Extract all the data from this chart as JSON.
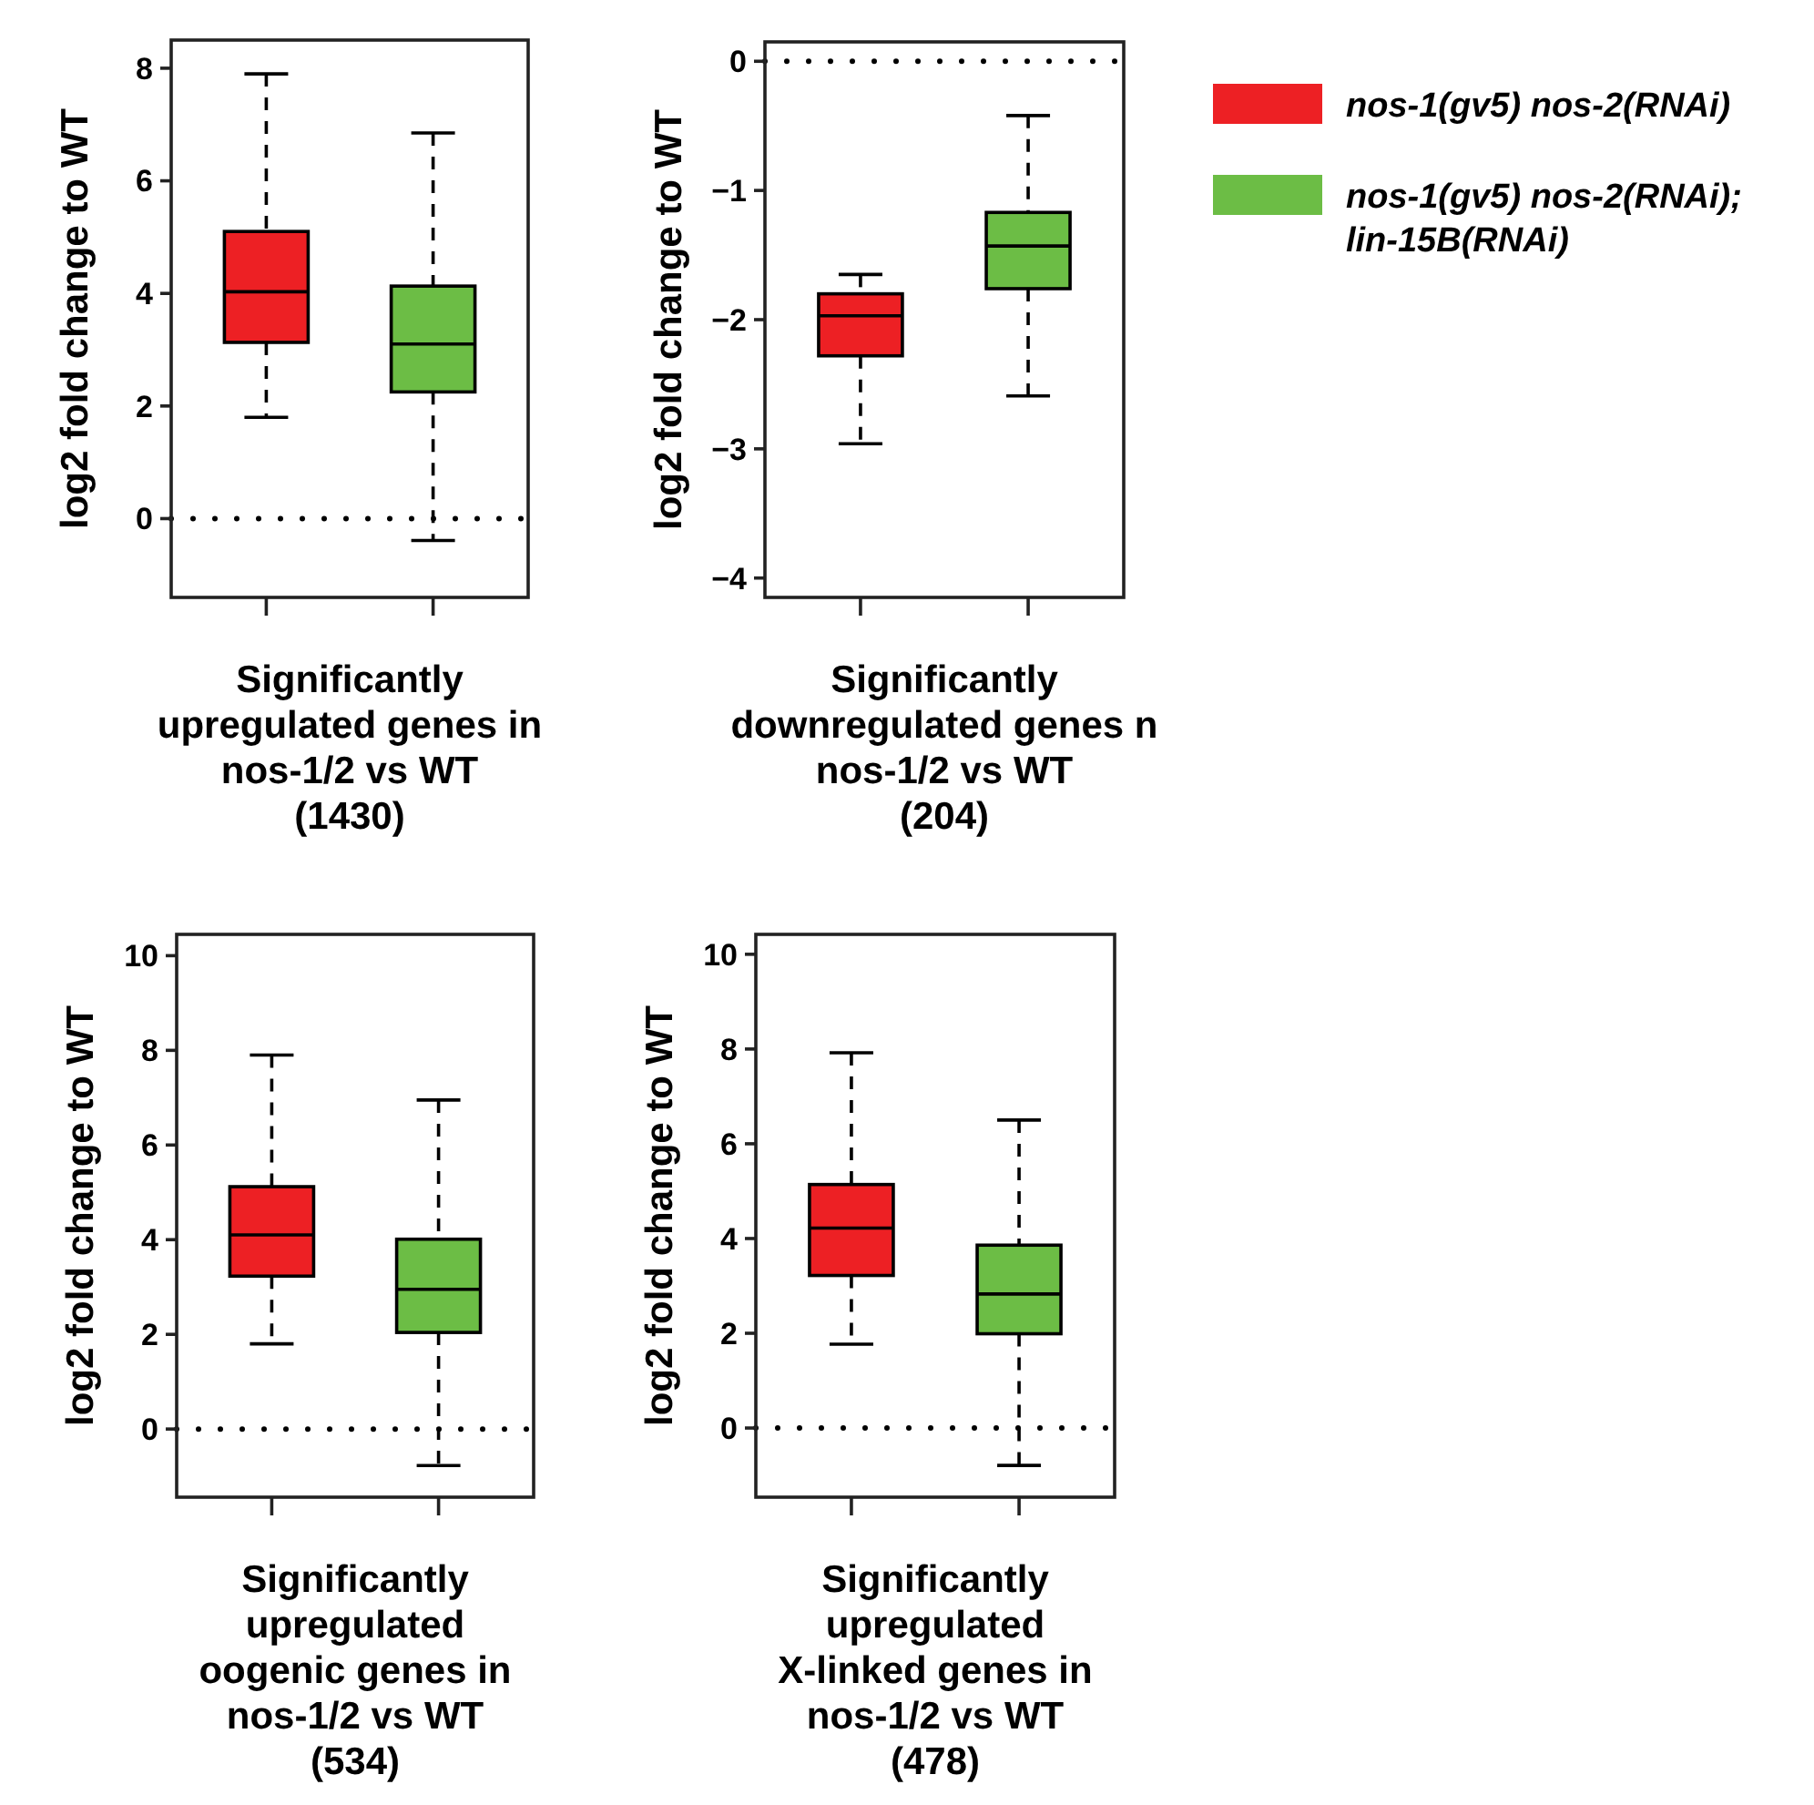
{
  "chart_data": [
    {
      "type": "box",
      "ylabel": "log2 fold change to WT",
      "xlabel": "Significantly\nupregulated genes in\nnos-1/2 vs WT\n(1430)",
      "categories": [
        null,
        null
      ],
      "ylim": [
        -1.4,
        8.5
      ],
      "yticks": [
        0,
        2,
        4,
        6,
        8
      ],
      "legend": false,
      "series": [
        {
          "color": "#ed2024",
          "boxes": [
            {
              "low": 1.8,
              "q1": 3.13,
              "median": 4.03,
              "q3": 5.1,
              "high": 7.9
            },
            null
          ]
        },
        {
          "color": "#6cbd45",
          "boxes": [
            null,
            {
              "low": -0.39,
              "q1": 2.25,
              "median": 3.1,
              "q3": 4.13,
              "high": 6.85
            }
          ]
        }
      ],
      "ref_lines": [
        {
          "axis": "y",
          "value": 0,
          "line_style": "dotted"
        }
      ]
    },
    {
      "type": "box",
      "ylabel": "log2 fold change to WT",
      "xlabel": "Significantly\ndownregulated genes n\nnos-1/2 vs WT\n(204)",
      "categories": [
        null,
        null
      ],
      "ylim": [
        -4.15,
        0.15
      ],
      "yticks": [
        {
          "value": 0,
          "label": "0"
        },
        {
          "value": -1,
          "label": "−1"
        },
        {
          "value": -2,
          "label": "−2"
        },
        {
          "value": -3,
          "label": "−3"
        },
        {
          "value": -4,
          "label": "−4"
        }
      ],
      "legend": "right",
      "series": [
        {
          "name": "nos-1(gv5) nos-2(RNAi)",
          "color": "#ed2024",
          "boxes": [
            {
              "low": -2.96,
              "q1": -2.28,
              "median": -1.97,
              "q3": -1.8,
              "high": -1.65
            },
            null
          ]
        },
        {
          "name": "nos-1(gv5) nos-2(RNAi);\nlin-15B(RNAi)",
          "color": "#6cbd45",
          "boxes": [
            null,
            {
              "low": -2.59,
              "q1": -1.76,
              "median": -1.43,
              "q3": -1.17,
              "high": -0.42
            }
          ]
        }
      ],
      "ref_lines": [
        {
          "axis": "y",
          "value": 0,
          "line_style": "dotted"
        }
      ]
    },
    {
      "type": "box",
      "ylabel": "log2 fold change to WT",
      "xlabel": "Significantly\nupregulated\noogenic genes in\nnos-1/2 vs WT\n(534)",
      "categories": [
        null,
        null
      ],
      "ylim": [
        -1.44,
        10.45
      ],
      "yticks": [
        0,
        2,
        4,
        6,
        8,
        10
      ],
      "legend": false,
      "series": [
        {
          "color": "#ed2024",
          "boxes": [
            {
              "low": 1.8,
              "q1": 3.23,
              "median": 4.1,
              "q3": 5.12,
              "high": 7.9
            },
            null
          ]
        },
        {
          "color": "#6cbd45",
          "boxes": [
            null,
            {
              "low": -0.77,
              "q1": 2.04,
              "median": 2.95,
              "q3": 4.01,
              "high": 6.95
            }
          ]
        }
      ],
      "ref_lines": [
        {
          "axis": "y",
          "value": 0,
          "line_style": "dotted"
        }
      ]
    },
    {
      "type": "box",
      "ylabel": "log2 fold change to WT",
      "xlabel": "Significantly\nupregulated\nX-linked genes in\nnos-1/2 vs WT\n(478)",
      "categories": [
        null,
        null
      ],
      "ylim": [
        -1.46,
        10.42
      ],
      "yticks": [
        0,
        2,
        4,
        6,
        8,
        10
      ],
      "legend": false,
      "series": [
        {
          "color": "#ed2024",
          "boxes": [
            {
              "low": 1.77,
              "q1": 3.22,
              "median": 4.22,
              "q3": 5.14,
              "high": 7.92
            },
            null
          ]
        },
        {
          "color": "#6cbd45",
          "boxes": [
            null,
            {
              "low": -0.79,
              "q1": 1.99,
              "median": 2.83,
              "q3": 3.86,
              "high": 6.5
            }
          ]
        }
      ],
      "ref_lines": [
        {
          "axis": "y",
          "value": 0,
          "line_style": "dotted"
        }
      ]
    }
  ]
}
